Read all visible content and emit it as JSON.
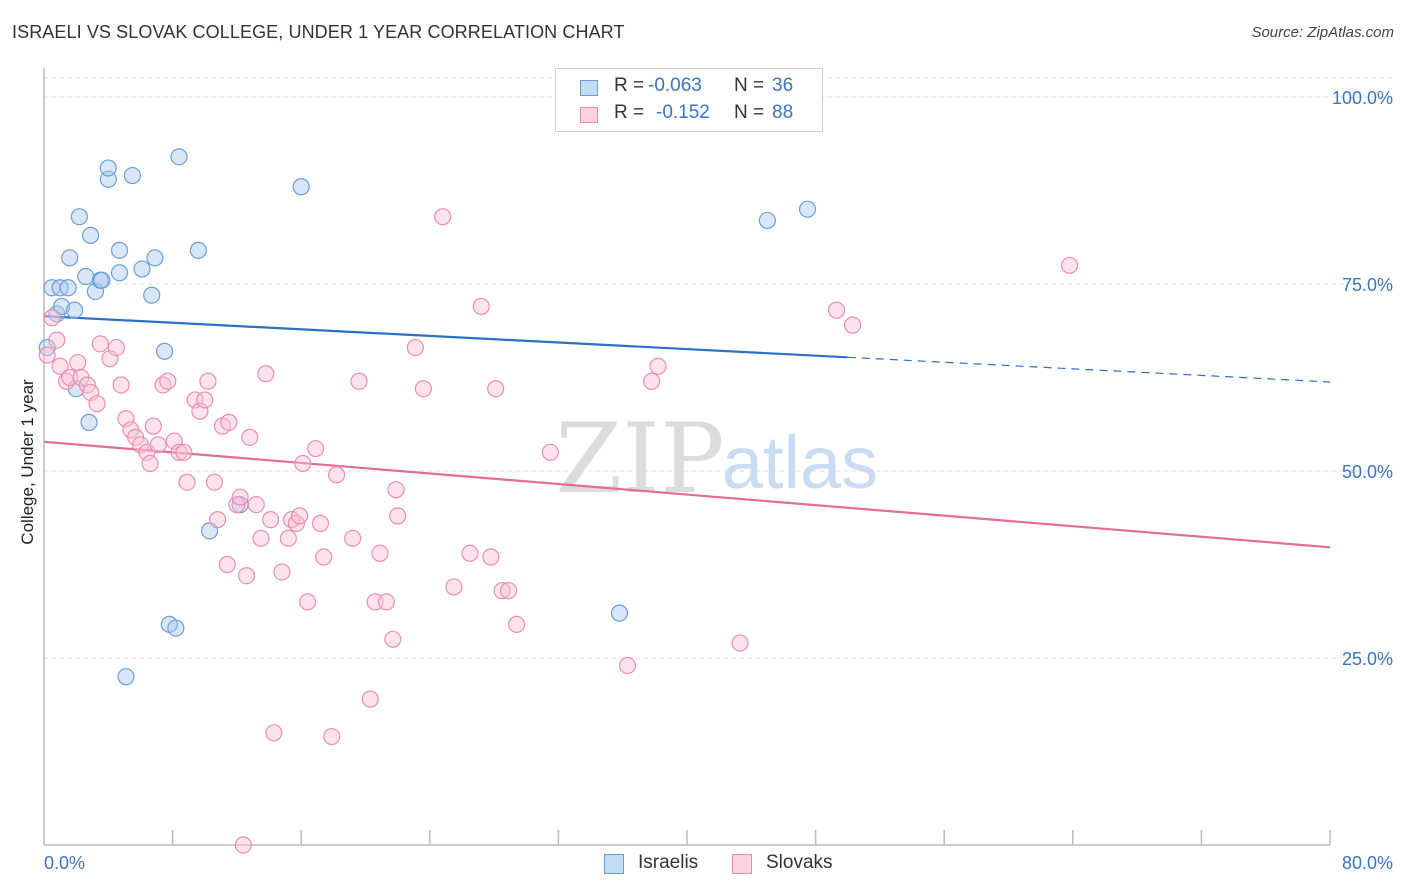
{
  "title": "ISRAELI VS SLOVAK COLLEGE, UNDER 1 YEAR CORRELATION CHART",
  "source": "Source: ZipAtlas.com",
  "watermark": {
    "zip": "ZIP",
    "atlas": "atlas"
  },
  "legend": {
    "rows": [
      {
        "r_label": "R =",
        "r_value": "-0.063",
        "n_label": "N =",
        "n_value": "36",
        "color": "#a8c8f0",
        "edge": "#6b9fdc"
      },
      {
        "r_label": "R =",
        "r_value": "-0.152",
        "n_label": "N =",
        "n_value": "88",
        "color": "#f8c0d2",
        "edge": "#ec8fae"
      }
    ]
  },
  "bottom_legend": [
    {
      "label": "Israelis",
      "color": "#a8c8f0",
      "edge": "#6b9fdc"
    },
    {
      "label": "Slovaks",
      "color": "#f8c0d2",
      "edge": "#ec8fae"
    }
  ],
  "chart_data": {
    "type": "scatter",
    "title": "ISRAELI VS SLOVAK COLLEGE, UNDER 1 YEAR CORRELATION CHART",
    "xlabel": "",
    "ylabel": "College, Under 1 year",
    "xlim": [
      0,
      80
    ],
    "ylim": [
      0,
      105
    ],
    "x_tick_labels": [
      {
        "value": 0,
        "label": "0.0%"
      },
      {
        "value": 80,
        "label": "80.0%"
      }
    ],
    "y_tick_labels": [
      {
        "value": 25,
        "label": "25.0%"
      },
      {
        "value": 50,
        "label": "50.0%"
      },
      {
        "value": 75,
        "label": "75.0%"
      },
      {
        "value": 100,
        "label": "100.0%"
      }
    ],
    "x_minor_ticks": [
      8,
      16,
      24,
      32,
      40,
      48,
      56,
      64,
      72,
      80
    ],
    "grid": true,
    "series": [
      {
        "name": "Israelis",
        "color": "#a8c8f0",
        "edge": "#6b9fdc",
        "trend": {
          "x": [
            0,
            50
          ],
          "y": [
            70.7,
            65.2
          ],
          "dashed_to": [
            80,
            61.9
          ],
          "color": "#2b70c9"
        },
        "points": [
          [
            0.2,
            66.5
          ],
          [
            0.5,
            74.5
          ],
          [
            0.8,
            71
          ],
          [
            1.0,
            74.5
          ],
          [
            1.1,
            72
          ],
          [
            1.5,
            74.5
          ],
          [
            1.6,
            78.5
          ],
          [
            1.9,
            71.5
          ],
          [
            2.0,
            61
          ],
          [
            2.2,
            84
          ],
          [
            2.6,
            76
          ],
          [
            2.8,
            56.5
          ],
          [
            2.9,
            81.5
          ],
          [
            3.2,
            74
          ],
          [
            3.5,
            75.5
          ],
          [
            3.6,
            75.5
          ],
          [
            4.0,
            89
          ],
          [
            4.0,
            90.5
          ],
          [
            4.7,
            79.5
          ],
          [
            4.7,
            76.5
          ],
          [
            5.5,
            89.5
          ],
          [
            6.1,
            77
          ],
          [
            6.7,
            73.5
          ],
          [
            6.9,
            78.5
          ],
          [
            7.5,
            66
          ],
          [
            7.8,
            29.5
          ],
          [
            8.2,
            29
          ],
          [
            8.4,
            92
          ],
          [
            9.6,
            79.5
          ],
          [
            10.3,
            42
          ],
          [
            12.2,
            45.5
          ],
          [
            16.0,
            88
          ],
          [
            35.8,
            31
          ],
          [
            45.0,
            83.5
          ],
          [
            47.5,
            85
          ],
          [
            5.1,
            22.5
          ]
        ]
      },
      {
        "name": "Slovaks",
        "color": "#f8c0d2",
        "edge": "#ec8fae",
        "trend": {
          "x": [
            0,
            80
          ],
          "y": [
            53.9,
            39.8
          ],
          "color": "#e66c94"
        },
        "points": [
          [
            0.2,
            65.5
          ],
          [
            0.5,
            70.5
          ],
          [
            0.8,
            67.5
          ],
          [
            1.0,
            64
          ],
          [
            1.4,
            62
          ],
          [
            1.6,
            62.5
          ],
          [
            2.1,
            64.5
          ],
          [
            2.3,
            62.5
          ],
          [
            2.7,
            61.5
          ],
          [
            2.9,
            60.5
          ],
          [
            3.3,
            59
          ],
          [
            3.5,
            67
          ],
          [
            4.1,
            65
          ],
          [
            4.5,
            66.5
          ],
          [
            4.8,
            61.5
          ],
          [
            5.1,
            57
          ],
          [
            5.4,
            55.5
          ],
          [
            5.7,
            54.5
          ],
          [
            6.0,
            53.5
          ],
          [
            6.4,
            52.5
          ],
          [
            6.6,
            51
          ],
          [
            6.8,
            56
          ],
          [
            7.1,
            53.5
          ],
          [
            7.4,
            61.5
          ],
          [
            7.7,
            62
          ],
          [
            8.1,
            54
          ],
          [
            8.4,
            52.5
          ],
          [
            8.7,
            52.5
          ],
          [
            8.9,
            48.5
          ],
          [
            9.4,
            59.5
          ],
          [
            9.7,
            58
          ],
          [
            10.0,
            59.5
          ],
          [
            10.2,
            62
          ],
          [
            10.6,
            48.5
          ],
          [
            10.8,
            43.5
          ],
          [
            11.1,
            56
          ],
          [
            11.5,
            56.5
          ],
          [
            11.4,
            37.5
          ],
          [
            12.0,
            45.5
          ],
          [
            12.2,
            46.5
          ],
          [
            12.6,
            36
          ],
          [
            12.8,
            54.5
          ],
          [
            13.2,
            45.5
          ],
          [
            13.5,
            41
          ],
          [
            13.8,
            63
          ],
          [
            14.1,
            43.5
          ],
          [
            14.8,
            36.5
          ],
          [
            15.2,
            41
          ],
          [
            15.4,
            43.5
          ],
          [
            15.7,
            43
          ],
          [
            15.9,
            44
          ],
          [
            16.1,
            51
          ],
          [
            16.4,
            32.5
          ],
          [
            16.9,
            53
          ],
          [
            17.2,
            43
          ],
          [
            17.4,
            38.5
          ],
          [
            18.2,
            49.5
          ],
          [
            19.2,
            41
          ],
          [
            19.6,
            62
          ],
          [
            20.3,
            19.5
          ],
          [
            20.6,
            32.5
          ],
          [
            20.9,
            39
          ],
          [
            21.3,
            32.5
          ],
          [
            21.7,
            27.5
          ],
          [
            21.9,
            47.5
          ],
          [
            22.0,
            44
          ],
          [
            23.1,
            66.5
          ],
          [
            23.6,
            61
          ],
          [
            24.8,
            84
          ],
          [
            25.5,
            34.5
          ],
          [
            26.5,
            39
          ],
          [
            27.2,
            72
          ],
          [
            27.8,
            38.5
          ],
          [
            28.1,
            61
          ],
          [
            28.5,
            34
          ],
          [
            28.9,
            34
          ],
          [
            29.4,
            29.5
          ],
          [
            31.5,
            52.5
          ],
          [
            36.3,
            24
          ],
          [
            37.8,
            62
          ],
          [
            38.2,
            64
          ],
          [
            43.3,
            27
          ],
          [
            49.3,
            71.5
          ],
          [
            50.3,
            69.5
          ],
          [
            63.8,
            77.5
          ],
          [
            14.3,
            15
          ],
          [
            17.9,
            14.5
          ],
          [
            12.4,
            0
          ]
        ]
      }
    ]
  }
}
